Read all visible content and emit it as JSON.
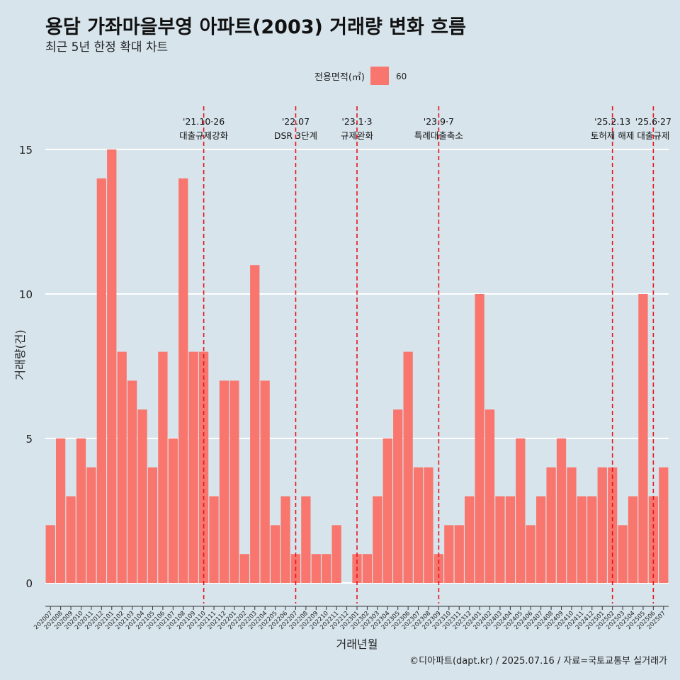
{
  "header": {
    "title": "용담 가좌마을부영 아파트(2003) 거래량 변화 흐름",
    "subtitle": "최근 5년 한정 확대 차트"
  },
  "caption": "©디아파트(dapt.kr) / 2025.07.16 / 자료=국토교통부 실거래가",
  "chart_data": {
    "type": "bar",
    "title": "용담 가좌마을부영 아파트(2003) 거래량 변화 흐름",
    "subtitle": "최근 5년 한정 확대 차트",
    "xlabel": "거래년월",
    "ylabel": "거래량(건)",
    "ylim": [
      0,
      15.8
    ],
    "yticks": [
      0,
      5,
      10,
      15
    ],
    "grid": true,
    "legend": {
      "title": "전용면적(㎡)",
      "position": "top",
      "entries": [
        {
          "label": "60",
          "color": "#f8766d"
        }
      ]
    },
    "categories": [
      "202007",
      "202008",
      "202009",
      "202010",
      "202011",
      "202012",
      "202101",
      "202102",
      "202103",
      "202104",
      "202105",
      "202106",
      "202107",
      "202108",
      "202109",
      "202110",
      "202111",
      "202112",
      "202201",
      "202202",
      "202203",
      "202204",
      "202205",
      "202206",
      "202207",
      "202208",
      "202209",
      "202210",
      "202211",
      "202212",
      "202301",
      "202302",
      "202303",
      "202304",
      "202305",
      "202306",
      "202307",
      "202308",
      "202309",
      "202310",
      "202311",
      "202312",
      "202401",
      "202402",
      "202403",
      "202404",
      "202405",
      "202406",
      "202407",
      "202408",
      "202409",
      "202410",
      "202411",
      "202412",
      "202501",
      "202502",
      "202503",
      "202504",
      "202505",
      "202506",
      "202507"
    ],
    "series": [
      {
        "name": "60",
        "color": "#f8766d",
        "values": [
          2,
          5,
          3,
          5,
          4,
          14,
          15,
          8,
          7,
          6,
          4,
          8,
          5,
          14,
          8,
          8,
          3,
          7,
          7,
          1,
          11,
          7,
          2,
          3,
          1,
          3,
          1,
          1,
          2,
          0,
          1,
          1,
          3,
          5,
          6,
          8,
          4,
          4,
          1,
          2,
          2,
          3,
          10,
          6,
          3,
          3,
          5,
          2,
          3,
          4,
          5,
          4,
          3,
          3,
          4,
          4,
          2,
          3,
          10,
          3,
          4
        ]
      }
    ],
    "annotations": [
      {
        "at": "202110",
        "date": "'21.10·26",
        "label": "대출규제강화"
      },
      {
        "at": "202207",
        "date": "'22.07",
        "label": "DSR 3단계"
      },
      {
        "at": "202301",
        "date": "'23.1·3",
        "label": "규제완화"
      },
      {
        "at": "202309",
        "date": "'23.9·7",
        "label": "특례대출축소"
      },
      {
        "at": "202502",
        "date": "'25.2.13",
        "label": "토허제 해제"
      },
      {
        "at": "202506",
        "date": "'25.6·27",
        "label": "대출규제"
      }
    ]
  }
}
